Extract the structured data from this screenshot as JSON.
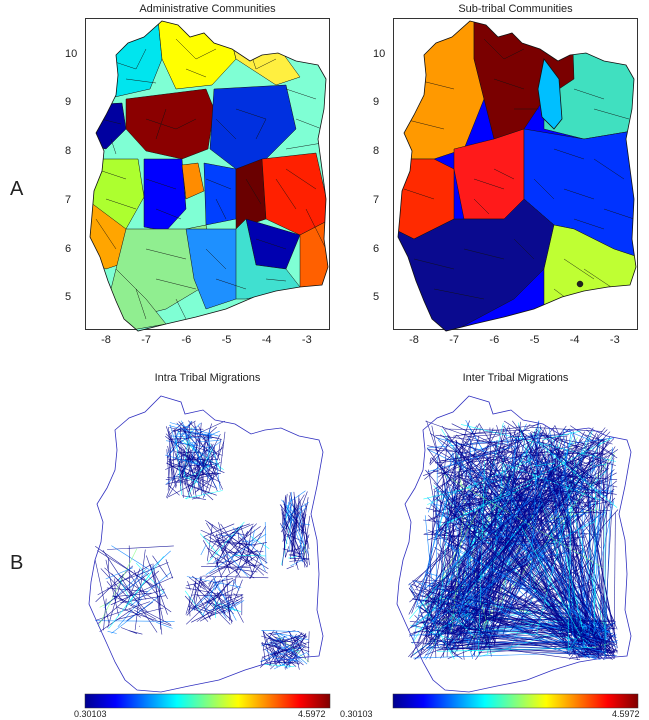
{
  "row_labels": [
    "A",
    "B"
  ],
  "panels": {
    "admin": {
      "title": "Administrative Communities",
      "xticks": [
        -8,
        -7,
        -6,
        -5,
        -4,
        -3
      ],
      "yticks": [
        5,
        6,
        7,
        8,
        9,
        10
      ],
      "xlim": [
        -8.6,
        -2.5
      ],
      "ylim": [
        4.35,
        10.75
      ]
    },
    "subtribal": {
      "title": "Sub-tribal Communities",
      "xticks": [
        -8,
        -7,
        -6,
        -5,
        -4,
        -3
      ],
      "yticks": [
        5,
        6,
        7,
        8,
        9,
        10
      ],
      "xlim": [
        -8.6,
        -2.5
      ],
      "ylim": [
        4.35,
        10.75
      ]
    },
    "intra": {
      "title": "Intra Tribal Migrations"
    },
    "inter": {
      "title": "Inter Tribal Migrations"
    }
  },
  "colorbars": [
    {
      "min_label": "0.30103",
      "max_label": "4.5972"
    },
    {
      "min_label": "0.30103",
      "max_label": "4.5972"
    }
  ],
  "colors": {
    "jet": [
      "#00008f",
      "#0000ff",
      "#0080ff",
      "#00ffff",
      "#80ff80",
      "#ffff00",
      "#ff8000",
      "#ff0000",
      "#800000"
    ],
    "map_outline": "#3030c0"
  }
}
